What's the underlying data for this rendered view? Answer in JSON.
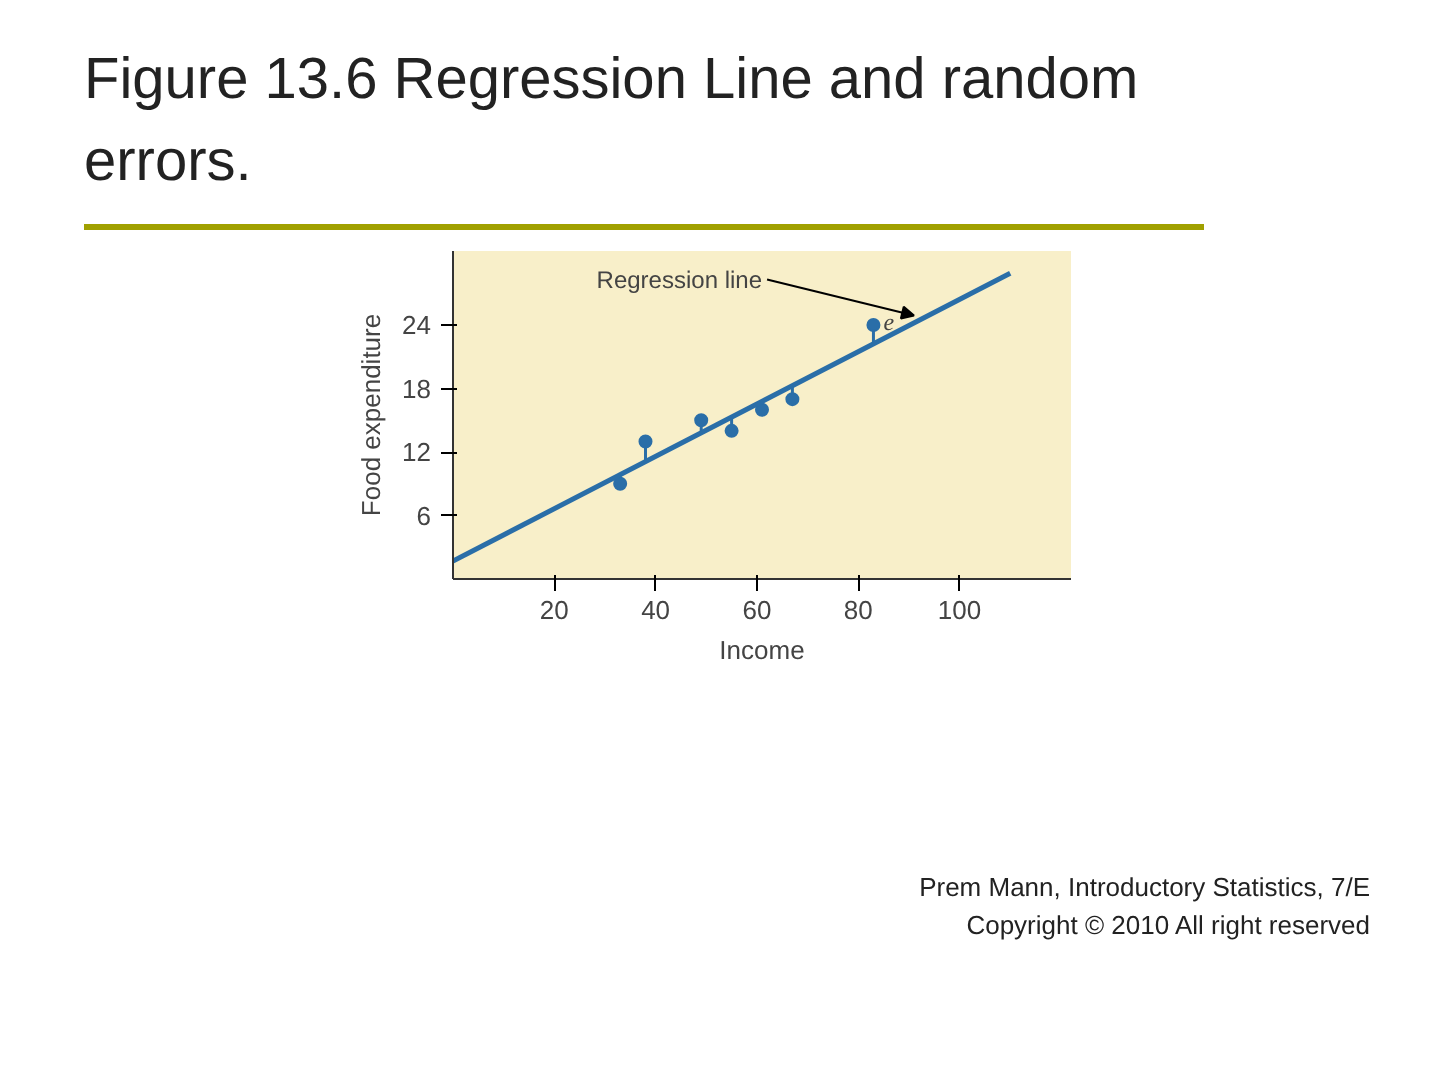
{
  "chart_data": {
    "type": "scatter",
    "title": "Figure 13.6 Regression Line and random errors.",
    "xlabel": "Income",
    "ylabel": "Food expenditure",
    "xlim": [
      0,
      122
    ],
    "ylim": [
      0,
      31
    ],
    "xticks": [
      20,
      40,
      60,
      80,
      100
    ],
    "yticks": [
      6,
      12,
      18,
      24
    ],
    "grid": false,
    "series": [
      {
        "marker": "circle",
        "color": "#2a6ea8",
        "x": [
          33,
          38,
          49,
          55,
          61,
          67,
          83
        ],
        "values": [
          9,
          13,
          15,
          14,
          16,
          17,
          24
        ],
        "errors": [
          [
            9,
            9.9
          ],
          [
            11.1,
            13
          ],
          [
            13.8,
            15
          ],
          [
            14,
            15.3
          ],
          [
            16,
            16.8
          ],
          [
            17,
            18.3
          ],
          [
            22.2,
            24
          ]
        ]
      },
      {
        "type": "line",
        "color": "#2a6ea8",
        "x": [
          0,
          110
        ],
        "values": [
          1.7,
          28.9
        ]
      }
    ],
    "annotations": [
      {
        "text": "Regression line",
        "x": 91,
        "y": 24.3
      },
      {
        "text": "e",
        "x": 85,
        "y": 23.5
      },
      "Prem Mann, Introductory Statistics, 7/E",
      "Copyright © 2010 All right reserved"
    ]
  }
}
